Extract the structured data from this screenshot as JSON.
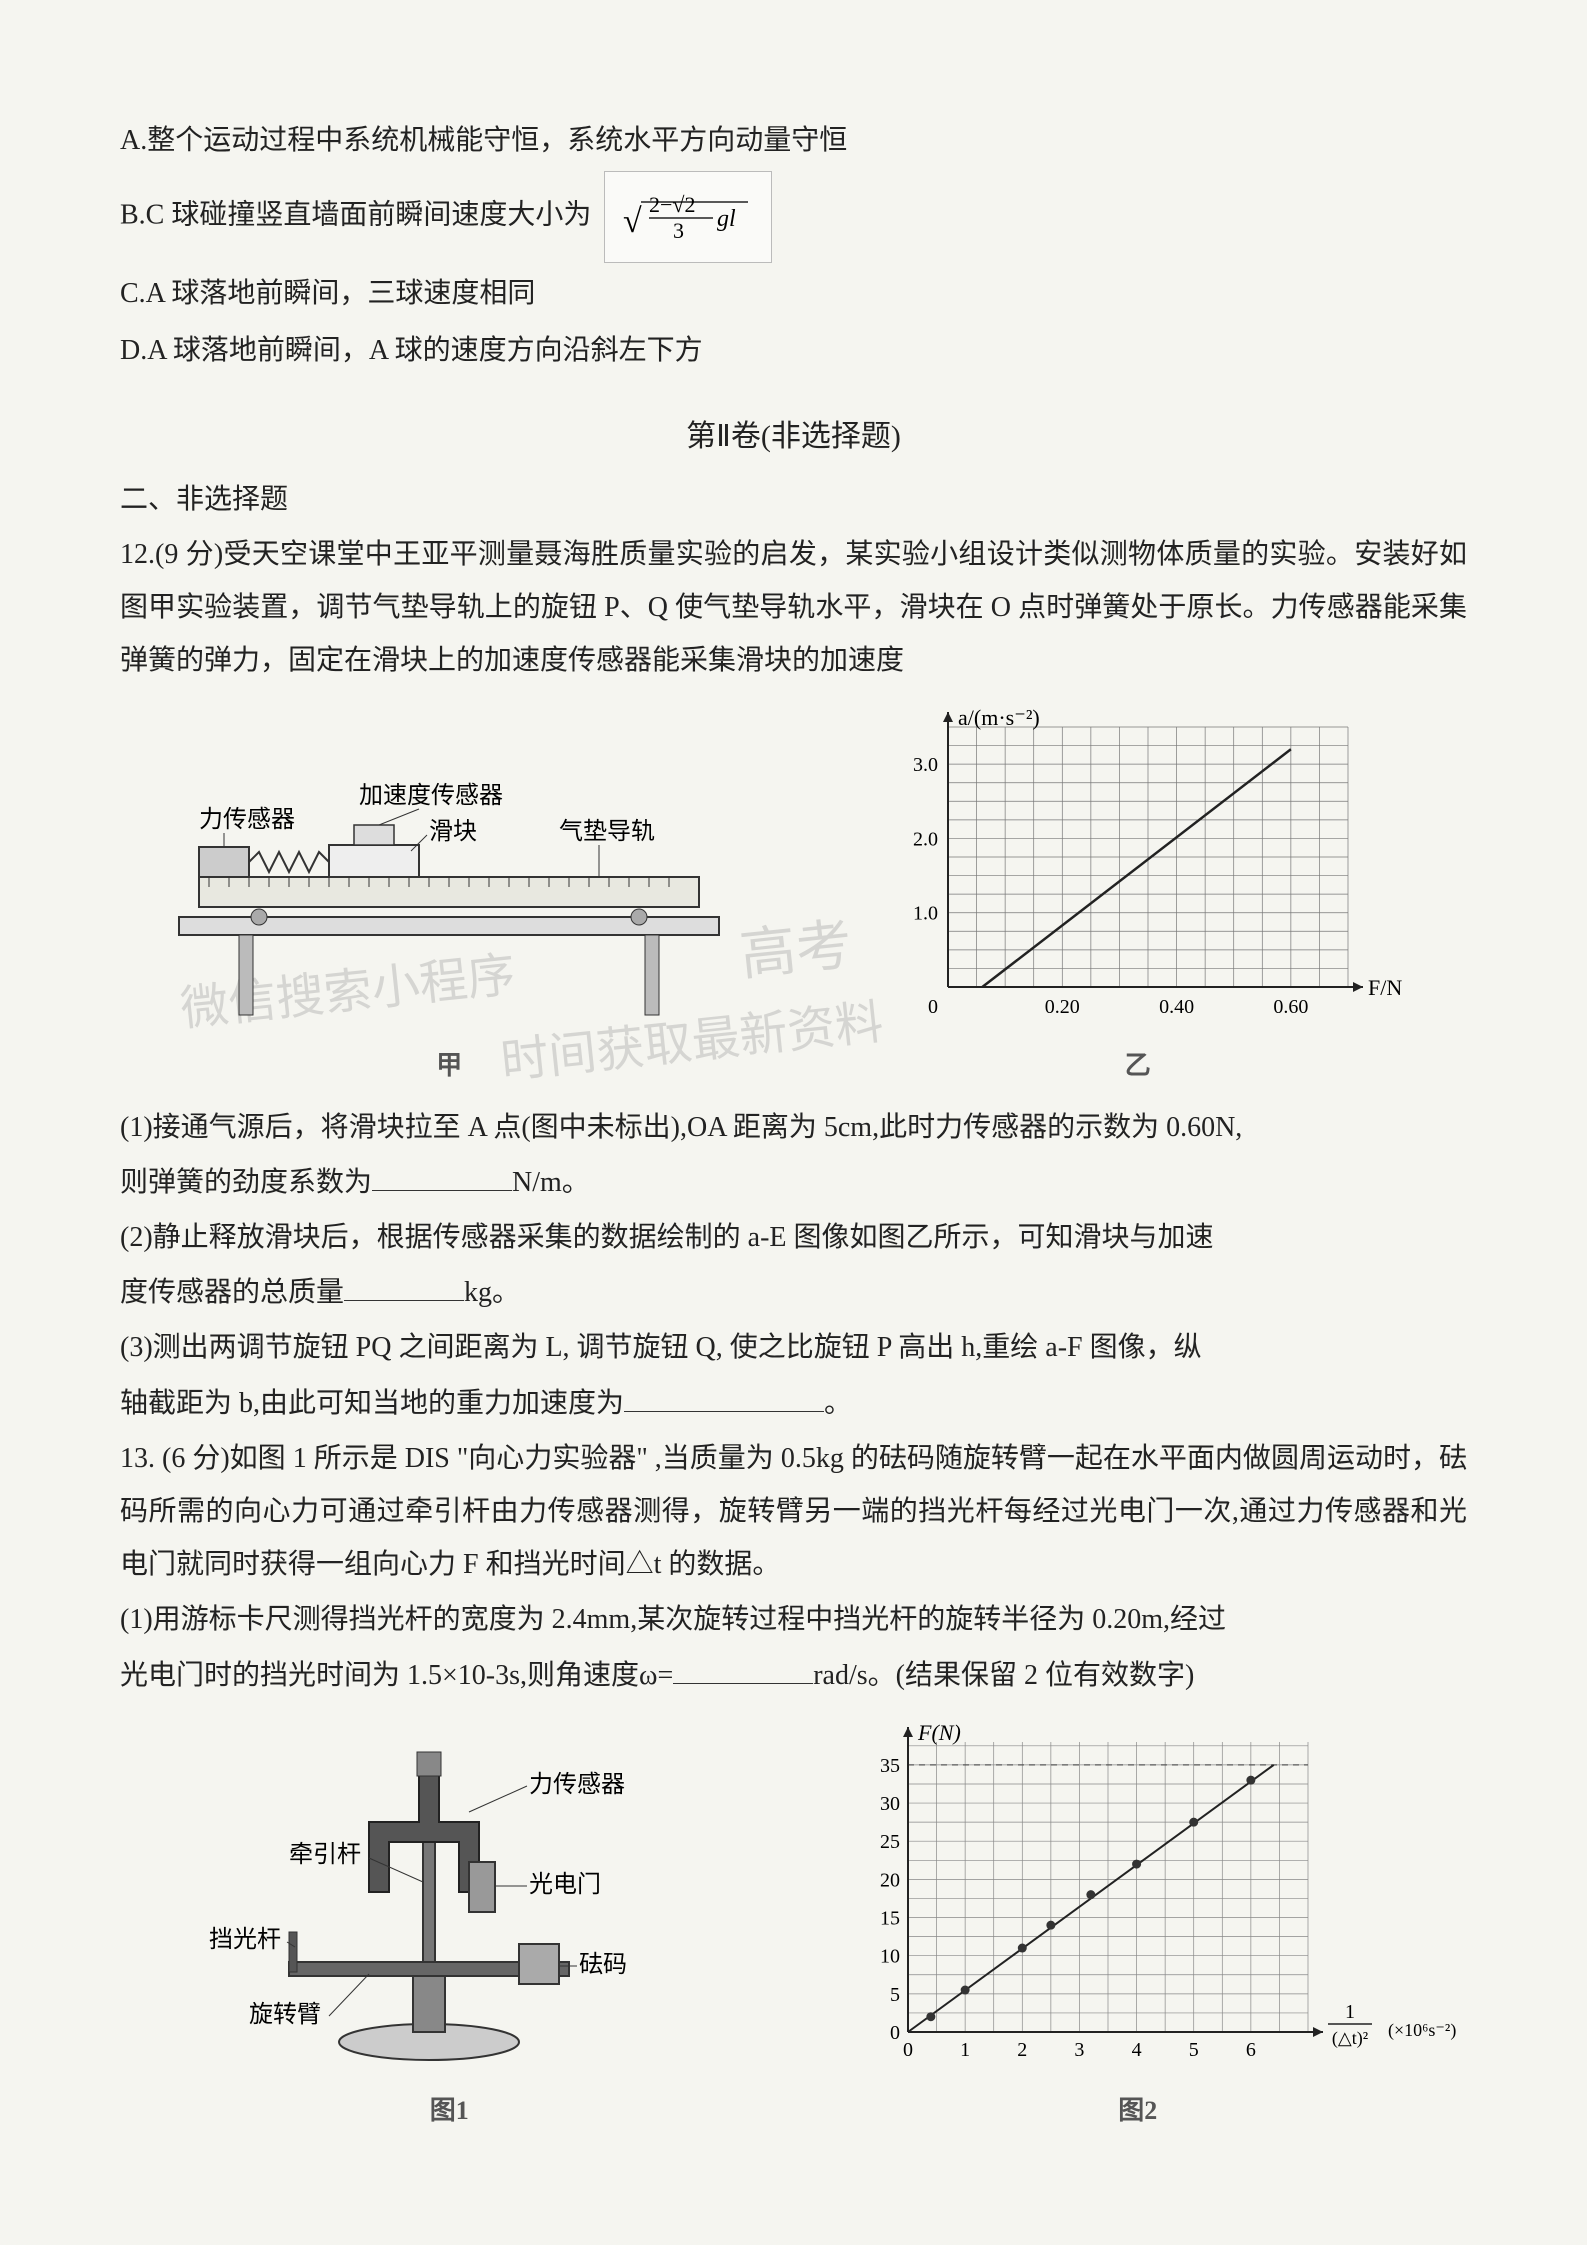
{
  "options": {
    "A": "A.整个运动过程中系统机械能守恒，系统水平方向动量守恒",
    "B_prefix": "B.C 球碰撞竖直墙面前瞬间速度大小为",
    "B_formula_html": "√((2−√2)/3 · gl)",
    "C": "C.A 球落地前瞬间，三球速度相同",
    "D": "D.A 球落地前瞬间，A 球的速度方向沿斜左下方"
  },
  "section2_title": "第Ⅱ卷(非选择题)",
  "heading2": "二、非选择题",
  "q12": {
    "stem": "12.(9 分)受天空课堂中王亚平测量聂海胜质量实验的启发，某实验小组设计类似测物体质量的实验。安装好如图甲实验装置，调节气垫导轨上的旋钮 P、Q 使气垫导轨水平，滑块在 O 点时弹簧处于原长。力传感器能采集弹簧的弹力，固定在滑块上的加速度传感器能采集滑块的加速度",
    "fig_left_labels": {
      "force_sensor": "力传感器",
      "accel_sensor": "加速度传感器",
      "slider": "滑块",
      "rail": "气垫导轨",
      "caption": "甲"
    },
    "fig_right": {
      "ylabel": "a/(m·s⁻²)",
      "xlabel": "F/N",
      "yticks": [
        1.0,
        2.0,
        3.0
      ],
      "xticks": [
        0.2,
        0.4,
        0.6
      ],
      "ylim": [
        0,
        3.5
      ],
      "xlim": [
        0,
        0.7
      ],
      "line_points": [
        [
          0.06,
          0
        ],
        [
          0.6,
          3.2
        ]
      ],
      "grid_color": "#777",
      "line_color": "#222",
      "caption": "乙"
    },
    "p1_a": "(1)接通气源后，将滑块拉至 A 点(图中未标出),OA 距离为 5cm,此时力传感器的示数为 0.60N,",
    "p1_b_prefix": "则弹簧的劲度系数为",
    "p1_b_unit": "N/m。",
    "p2_a": "(2)静止释放滑块后，根据传感器采集的数据绘制的 a-E 图像如图乙所示，可知滑块与加速",
    "p2_b_prefix": "度传感器的总质量",
    "p2_b_unit": "kg。",
    "p3_a": "(3)测出两调节旋钮 PQ 之间距离为 L,  调节旋钮 Q,  使之比旋钮 P 高出 h,重绘 a-F 图像，纵",
    "p3_b_prefix": "轴截距为 b,由此可知当地的重力加速度为",
    "p3_b_suffix": "。"
  },
  "q13": {
    "stem1": "13. (6 分)如图 1 所示是 DIS \"向心力实验器\" ,当质量为 0.5kg 的砝码随旋转臂一起在水平面内做圆周运动时，砝码所需的向心力可通过牵引杆由力传感器测得，旋转臂另一端的挡光杆每经过光电门一次,通过力传感器和光电门就同时获得一组向心力 F 和挡光时间△t 的数据。",
    "p1_a": "(1)用游标卡尺测得挡光杆的宽度为 2.4mm,某次旋转过程中挡光杆的旋转半径为 0.20m,经过",
    "p1_b_prefix": "光电门时的挡光时间为 1.5×10-3s,则角速度ω=",
    "p1_b_unit": "rad/s。(结果保留 2 位有效数字)",
    "fig_left_labels": {
      "force_sensor": "力传感器",
      "pull_rod": "牵引杆",
      "light_gate": "光电门",
      "block_rod": "挡光杆",
      "weight": "砝码",
      "arm": "旋转臂",
      "caption": "图1"
    },
    "fig_right": {
      "ylabel": "F(N)",
      "xlabel": "1/(△t)² (×10⁶s⁻²)",
      "yticks": [
        0,
        5,
        10,
        15,
        20,
        25,
        30,
        35
      ],
      "xticks": [
        0,
        1,
        2,
        3,
        4,
        5,
        6
      ],
      "ylim": [
        0,
        38
      ],
      "xlim": [
        0,
        7
      ],
      "points": [
        [
          0.4,
          2
        ],
        [
          1.0,
          5.5
        ],
        [
          2.0,
          11
        ],
        [
          2.5,
          14
        ],
        [
          3.2,
          18
        ],
        [
          4.0,
          22
        ],
        [
          5.0,
          27.5
        ],
        [
          6.0,
          33
        ]
      ],
      "line": [
        [
          0,
          0
        ],
        [
          6.4,
          35
        ]
      ],
      "grid_color": "#888",
      "dashed_y": 35,
      "caption": "图2"
    }
  },
  "watermarks": {
    "w1": "微信搜索小程序",
    "w2": "高考",
    "w3": "时间获取最新资料"
  },
  "colors": {
    "text": "#222222",
    "figure_stroke": "#333333",
    "grid": "#808080",
    "bg": "#f5f5f0"
  }
}
